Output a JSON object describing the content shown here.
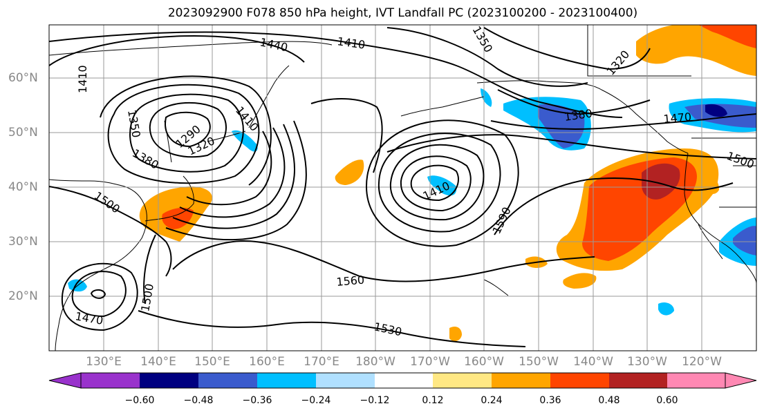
{
  "title": "2023092900 F078 850 hPa height, IVT Landfall PC (2023100200 - 2023100400)",
  "lat_labels": [
    "60°N",
    "50°N",
    "40°N",
    "30°N",
    "20°N"
  ],
  "lon_labels": [
    "130°E",
    "140°E",
    "150°E",
    "160°E",
    "170°E",
    "180°W",
    "170°W",
    "160°W",
    "150°W",
    "140°W",
    "130°W",
    "120°W"
  ],
  "contour_labels": [
    "1440",
    "1410",
    "1350",
    "1320",
    "1410",
    "1350",
    "1290",
    "1320",
    "1410",
    "1380",
    "1380",
    "1470",
    "1500",
    "1500",
    "1410",
    "1590",
    "1560",
    "1530",
    "1470",
    "1500"
  ],
  "colorbar": {
    "ticks": [
      "−0.60",
      "−0.48",
      "−0.36",
      "−0.24",
      "−0.12",
      "0.12",
      "0.24",
      "0.36",
      "0.48",
      "0.60"
    ],
    "colors": [
      "#9932cc",
      "#000080",
      "#3a5bcd",
      "#00bfff",
      "#b0e0ff",
      "#ffffff",
      "#ffe884",
      "#ffa500",
      "#ff4500",
      "#b22222",
      "#ff88b3"
    ]
  }
}
